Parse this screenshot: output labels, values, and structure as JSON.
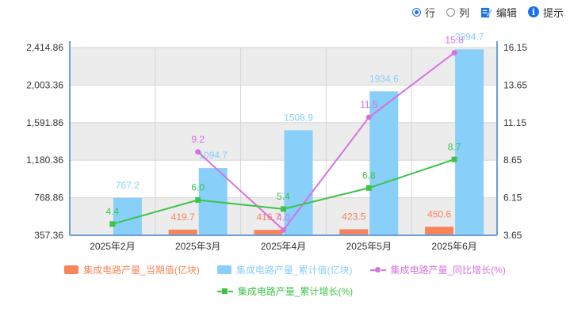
{
  "toolbar": {
    "row_label": "行",
    "col_label": "列",
    "edit_label": "编辑",
    "hint_label": "提示",
    "info_glyph": "i",
    "selected": "row"
  },
  "chart_data": {
    "type": "bar",
    "categories": [
      "2025年2月",
      "2025年3月",
      "2025年4月",
      "2025年5月",
      "2025年6月"
    ],
    "y_left": {
      "ticks": [
        "2,414.86",
        "2,003.36",
        "1,591.86",
        "1,180.36",
        "768.86",
        "357.36"
      ],
      "range": [
        357.36,
        2414.86
      ]
    },
    "y_right": {
      "ticks": [
        "16.15",
        "13.65",
        "11.15",
        "8.65",
        "6.15",
        "3.65"
      ],
      "range": [
        3.65,
        16.15
      ]
    },
    "grid": true,
    "legend_placement": "bottom",
    "series": [
      {
        "name": "集成电路产量_当期值(亿块)",
        "kind": "bar",
        "axis": "left",
        "color": "#f7845a",
        "values": [
          null,
          419.7,
          416.7,
          423.5,
          450.6
        ],
        "labels": [
          "",
          "419.7",
          "416.7",
          "423.5",
          "450.6"
        ]
      },
      {
        "name": "集成电路产量_累计值(亿块)",
        "kind": "bar",
        "axis": "left",
        "color": "#88cffa",
        "values": [
          767.2,
          1094.7,
          1508.9,
          1934.6,
          2394.7
        ],
        "labels": [
          "767.2",
          "1094.7",
          "1508.9",
          "1934.6",
          "2394.7"
        ]
      },
      {
        "name": "集成电路产量_同比增长(%)",
        "kind": "line",
        "axis": "right",
        "color": "#d672e0",
        "marker": "circle",
        "values": [
          null,
          9.2,
          4.0,
          11.5,
          15.8
        ],
        "labels": [
          "",
          "9.2",
          "4.0",
          "11.5",
          "15.8"
        ]
      },
      {
        "name": "集成电路产量_累计增长(%)",
        "kind": "line",
        "axis": "right",
        "color": "#3dc447",
        "marker": "square",
        "values": [
          4.4,
          6.0,
          5.4,
          6.8,
          8.7
        ],
        "labels": [
          "4.4",
          "6.0",
          "5.4",
          "6.8",
          "8.7"
        ]
      }
    ]
  }
}
